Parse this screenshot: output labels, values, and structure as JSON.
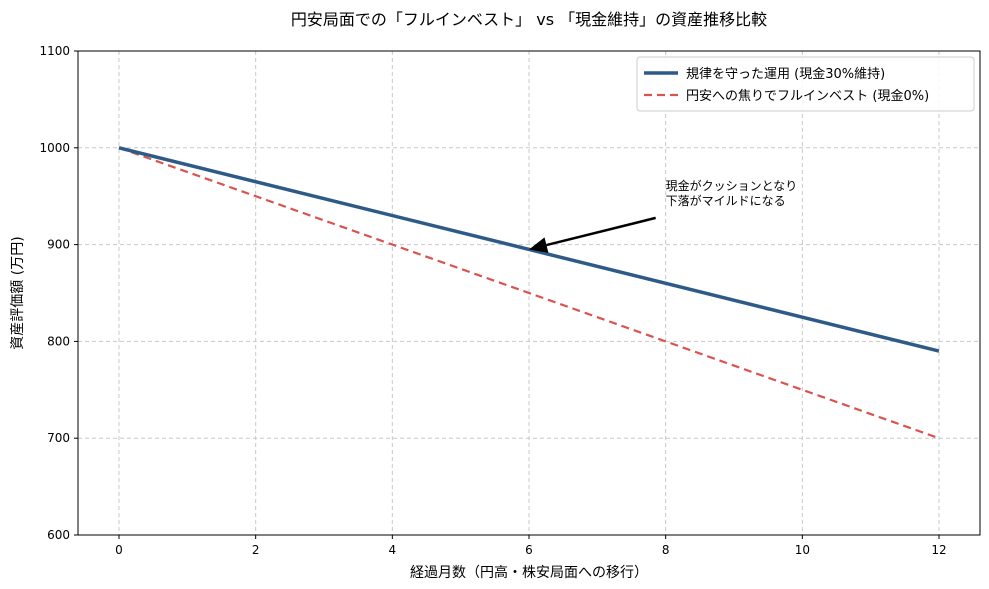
{
  "chart_data": {
    "type": "line",
    "title": "円安局面での「フルインベスト」 vs 「現金維持」の資産推移比較",
    "xlabel": "経過月数（円高・株安局面への移行）",
    "ylabel": "資産評価額 (万円)",
    "xlim": [
      -0.6,
      12.6
    ],
    "ylim": [
      600,
      1100
    ],
    "xticks": [
      0,
      2,
      4,
      6,
      8,
      10,
      12
    ],
    "yticks": [
      600,
      700,
      800,
      900,
      1000,
      1100
    ],
    "grid": true,
    "legend_position": "upper right",
    "x": [
      0,
      12
    ],
    "series": [
      {
        "name": "規律を守った運用 (現金30%維持)",
        "values": [
          1000,
          790
        ],
        "color": "#2e5a87",
        "style": "solid",
        "width": 3.5
      },
      {
        "name": "円安への焦りでフルインベスト (現金0%)",
        "values": [
          1000,
          700
        ],
        "color": "#d9534f",
        "style": "dashed",
        "width": 2.2
      }
    ],
    "annotations": [
      {
        "text_lines": [
          "現金がクッションとなり",
          "下落がマイルドになる"
        ],
        "text_xy": [
          8,
          940
        ],
        "arrow_to": [
          6,
          895
        ]
      }
    ]
  }
}
